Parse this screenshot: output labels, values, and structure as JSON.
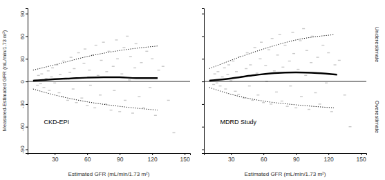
{
  "chart_data": [
    {
      "type": "scatter",
      "title": "CKD-EPI",
      "x_label": "Estimated GFR (mL/min/1.73 m²)",
      "y_label": "Measured-Estimated GFR (mL/min/1.73 m²)",
      "xlim": [
        5,
        155
      ],
      "ylim": [
        -95,
        97
      ],
      "xticks": [
        30,
        60,
        90,
        120,
        150
      ],
      "yticks": [
        -90,
        -60,
        -30,
        0,
        30,
        60,
        90
      ],
      "tick_labels": true,
      "series": [
        {
          "type": "scatter",
          "marker": "dash",
          "color": "#c8c8c8",
          "x": [
            12,
            14,
            15,
            17,
            18,
            20,
            22,
            24,
            25,
            27,
            28,
            30,
            32,
            34,
            35,
            37,
            38,
            40,
            42,
            44,
            45,
            47,
            48,
            50,
            52,
            54,
            55,
            57,
            58,
            60,
            62,
            63,
            65,
            67,
            68,
            70,
            72,
            73,
            75,
            77,
            78,
            80,
            82,
            84,
            85,
            87,
            88,
            90,
            92,
            94,
            95,
            97,
            99,
            100,
            102,
            104,
            105,
            108,
            110,
            112,
            115,
            118,
            120,
            123,
            126,
            130,
            135,
            140
          ],
          "values": [
            2,
            -5,
            8,
            -3,
            10,
            -8,
            4,
            14,
            -12,
            6,
            18,
            -2,
            22,
            -15,
            9,
            -20,
            27,
            3,
            -25,
            12,
            32,
            -10,
            17,
            -28,
            38,
            5,
            -22,
            24,
            43,
            -32,
            15,
            -5,
            35,
            -35,
            48,
            8,
            -18,
            28,
            52,
            -30,
            13,
            40,
            -38,
            20,
            -12,
            55,
            30,
            -40,
            10,
            45,
            -25,
            60,
            2,
            33,
            -42,
            18,
            50,
            -20,
            25,
            -35,
            40,
            -8,
            30,
            -45,
            15,
            20,
            -25,
            -68
          ]
        },
        {
          "type": "line",
          "line_style": "solid",
          "color": "#000000",
          "x": [
            5,
            155
          ],
          "values": [
            0,
            0
          ]
        },
        {
          "type": "line",
          "line_style": "thick",
          "color": "#000000",
          "x": [
            10,
            20,
            30,
            45,
            60,
            75,
            90,
            105,
            125
          ],
          "values": [
            1,
            2,
            3,
            4,
            5,
            5.5,
            5.5,
            4.5,
            4.5
          ]
        },
        {
          "type": "line",
          "line_style": "dotted",
          "color": "#000000",
          "x": [
            10,
            30,
            60,
            90,
            125
          ],
          "values": [
            15,
            22,
            33,
            41,
            47
          ]
        },
        {
          "type": "line",
          "line_style": "dotted",
          "color": "#000000",
          "x": [
            10,
            30,
            60,
            90,
            125
          ],
          "values": [
            -10,
            -18,
            -27,
            -33,
            -38
          ]
        }
      ]
    },
    {
      "type": "scatter",
      "title": "MDRD Study",
      "x_label": "Estimated GFR (mL/min/1.73 m²)",
      "annotations": [
        "Underestimate",
        "Overestimate"
      ],
      "xlim": [
        5,
        155
      ],
      "ylim": [
        -95,
        97
      ],
      "xticks": [
        30,
        60,
        90,
        120,
        150
      ],
      "yticks": [
        -90,
        -60,
        -30,
        0,
        30,
        60,
        90
      ],
      "tick_labels": "x",
      "series": [
        {
          "type": "scatter",
          "marker": "dash",
          "color": "#c8c8c8",
          "x": [
            12,
            14,
            15,
            17,
            18,
            20,
            22,
            24,
            25,
            27,
            28,
            30,
            32,
            34,
            35,
            37,
            38,
            40,
            42,
            44,
            45,
            47,
            48,
            50,
            52,
            54,
            55,
            57,
            58,
            60,
            62,
            63,
            65,
            67,
            68,
            70,
            72,
            73,
            75,
            77,
            78,
            80,
            82,
            84,
            85,
            87,
            88,
            90,
            92,
            94,
            95,
            97,
            99,
            100,
            102,
            104,
            105,
            108,
            110,
            112,
            115,
            118,
            120,
            123,
            126,
            130,
            135,
            140
          ],
          "values": [
            2,
            -4,
            10,
            -2,
            13,
            -6,
            6,
            18,
            -10,
            9,
            22,
            1,
            27,
            -13,
            13,
            -17,
            33,
            7,
            -22,
            17,
            38,
            -6,
            22,
            -25,
            45,
            11,
            -18,
            30,
            52,
            -28,
            21,
            0,
            42,
            -30,
            57,
            14,
            -14,
            35,
            62,
            -26,
            19,
            48,
            -33,
            27,
            -6,
            65,
            37,
            -35,
            16,
            54,
            -20,
            70,
            8,
            41,
            -37,
            25,
            60,
            -15,
            32,
            -30,
            48,
            -2,
            38,
            -40,
            22,
            28,
            -18,
            -60
          ]
        },
        {
          "type": "line",
          "line_style": "solid",
          "color": "#000000",
          "x": [
            5,
            155
          ],
          "values": [
            0,
            0
          ]
        },
        {
          "type": "line",
          "line_style": "thick",
          "color": "#000000",
          "x": [
            10,
            30,
            50,
            70,
            90,
            110,
            128
          ],
          "values": [
            1,
            4,
            8,
            11,
            12,
            11,
            9
          ]
        },
        {
          "type": "line",
          "line_style": "dotted",
          "color": "#000000",
          "x": [
            10,
            30,
            60,
            90,
            125
          ],
          "values": [
            17,
            28,
            43,
            55,
            62
          ]
        },
        {
          "type": "line",
          "line_style": "dotted",
          "color": "#000000",
          "x": [
            10,
            30,
            60,
            90,
            125
          ],
          "values": [
            -8,
            -17,
            -26,
            -31,
            -35
          ]
        }
      ]
    }
  ]
}
